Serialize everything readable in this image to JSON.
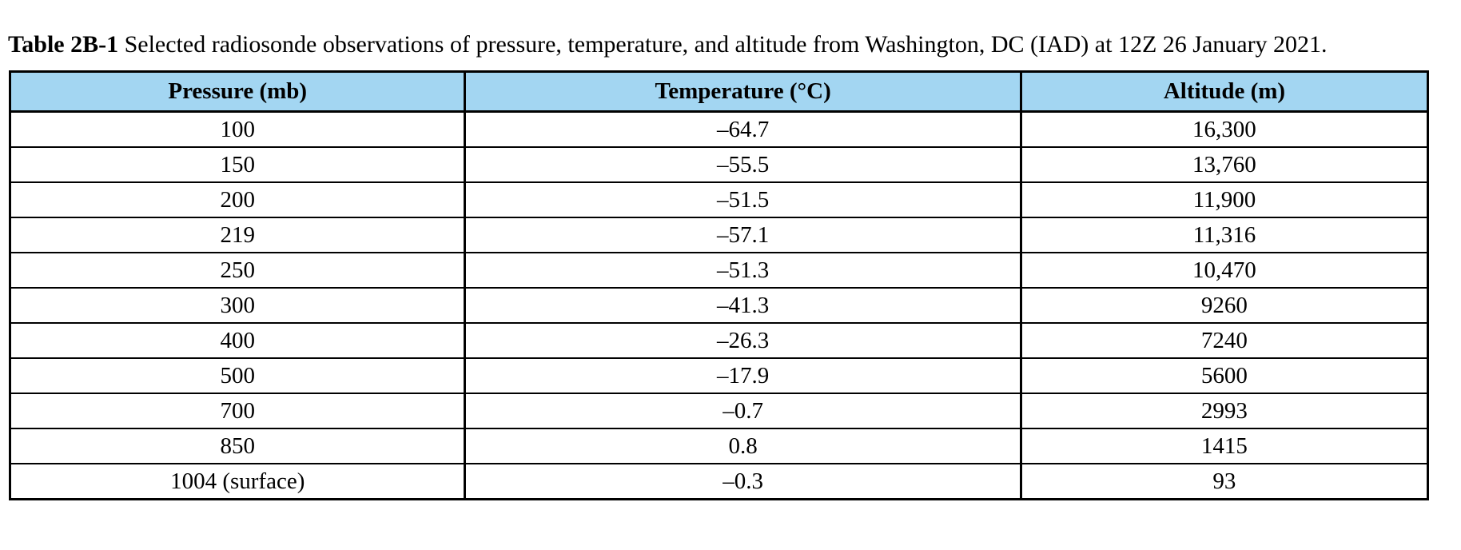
{
  "caption": {
    "label": "Table 2B-1",
    "text": " Selected radiosonde observations of pressure, temperature, and altitude from Washington, DC (IAD) at 12Z 26 January 2021."
  },
  "table": {
    "header_bg_color": "#a3d6f2",
    "border_color": "#000000",
    "columns": {
      "pressure": "Pressure (mb)",
      "temperature": "Temperature (°C)",
      "altitude": "Altitude (m)"
    },
    "rows": [
      {
        "pressure": "100",
        "temperature": "–64.7",
        "altitude": "16,300"
      },
      {
        "pressure": "150",
        "temperature": "–55.5",
        "altitude": "13,760"
      },
      {
        "pressure": "200",
        "temperature": "–51.5",
        "altitude": "11,900"
      },
      {
        "pressure": "219",
        "temperature": "–57.1",
        "altitude": "11,316"
      },
      {
        "pressure": "250",
        "temperature": "–51.3",
        "altitude": "10,470"
      },
      {
        "pressure": "300",
        "temperature": "–41.3",
        "altitude": "9260"
      },
      {
        "pressure": "400",
        "temperature": "–26.3",
        "altitude": "7240"
      },
      {
        "pressure": "500",
        "temperature": "–17.9",
        "altitude": "5600"
      },
      {
        "pressure": "700",
        "temperature": "–0.7",
        "altitude": "2993"
      },
      {
        "pressure": "850",
        "temperature": "0.8",
        "altitude": "1415"
      },
      {
        "pressure": "1004 (surface)",
        "temperature": "–0.3",
        "altitude": "93"
      }
    ]
  },
  "chart_data": {
    "type": "table",
    "title": "Table 2B-1 Selected radiosonde observations of pressure, temperature, and altitude from Washington, DC (IAD) at 12Z 26 January 2021.",
    "columns": [
      "Pressure (mb)",
      "Temperature (°C)",
      "Altitude (m)"
    ],
    "pressure_mb": [
      100,
      150,
      200,
      219,
      250,
      300,
      400,
      500,
      700,
      850,
      1004
    ],
    "temperature_c": [
      -64.7,
      -55.5,
      -51.5,
      -57.1,
      -51.3,
      -41.3,
      -26.3,
      -17.9,
      -0.7,
      0.8,
      -0.3
    ],
    "altitude_m": [
      16300,
      13760,
      11900,
      11316,
      10470,
      9260,
      7240,
      5600,
      2993,
      1415,
      93
    ],
    "notes": "Last pressure row labeled '1004 (surface)'"
  }
}
